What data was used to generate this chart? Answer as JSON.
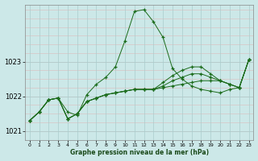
{
  "bg_color": "#cce8e8",
  "grid_color": "#aacccc",
  "line_color": "#1a6b1a",
  "marker": "+",
  "xlim": [
    -0.5,
    23.5
  ],
  "ylim": [
    1020.75,
    1024.65
  ],
  "yticks": [
    1021,
    1022,
    1023
  ],
  "xticks": [
    0,
    1,
    2,
    3,
    4,
    5,
    6,
    7,
    8,
    9,
    10,
    11,
    12,
    13,
    14,
    15,
    16,
    17,
    18,
    19,
    20,
    21,
    22,
    23
  ],
  "xlabel": "Graphe pression niveau de la mer (hPa)",
  "series": [
    [
      1021.3,
      1021.55,
      1021.9,
      1021.95,
      1021.55,
      1021.45,
      1022.05,
      1022.35,
      1022.55,
      1022.85,
      1023.6,
      1024.45,
      1024.5,
      1024.15,
      1023.7,
      1022.8,
      1022.5,
      1022.3,
      1022.2,
      1022.15,
      1022.1,
      1022.2,
      1022.25,
      1023.05
    ],
    [
      1021.3,
      1021.55,
      1021.9,
      1021.95,
      1021.35,
      1021.5,
      1021.85,
      1021.95,
      1022.05,
      1022.1,
      1022.15,
      1022.2,
      1022.2,
      1022.2,
      1022.25,
      1022.3,
      1022.35,
      1022.4,
      1022.45,
      1022.45,
      1022.45,
      1022.35,
      1022.25,
      1023.05
    ],
    [
      1021.3,
      1021.55,
      1021.9,
      1021.95,
      1021.35,
      1021.5,
      1021.85,
      1021.95,
      1022.05,
      1022.1,
      1022.15,
      1022.2,
      1022.2,
      1022.2,
      1022.3,
      1022.45,
      1022.55,
      1022.65,
      1022.65,
      1022.55,
      1022.45,
      1022.35,
      1022.25,
      1023.05
    ],
    [
      1021.3,
      1021.55,
      1021.9,
      1021.95,
      1021.35,
      1021.5,
      1021.85,
      1021.95,
      1022.05,
      1022.1,
      1022.15,
      1022.2,
      1022.2,
      1022.2,
      1022.4,
      1022.6,
      1022.75,
      1022.85,
      1022.85,
      1022.65,
      1022.45,
      1022.35,
      1022.25,
      1023.05
    ]
  ]
}
